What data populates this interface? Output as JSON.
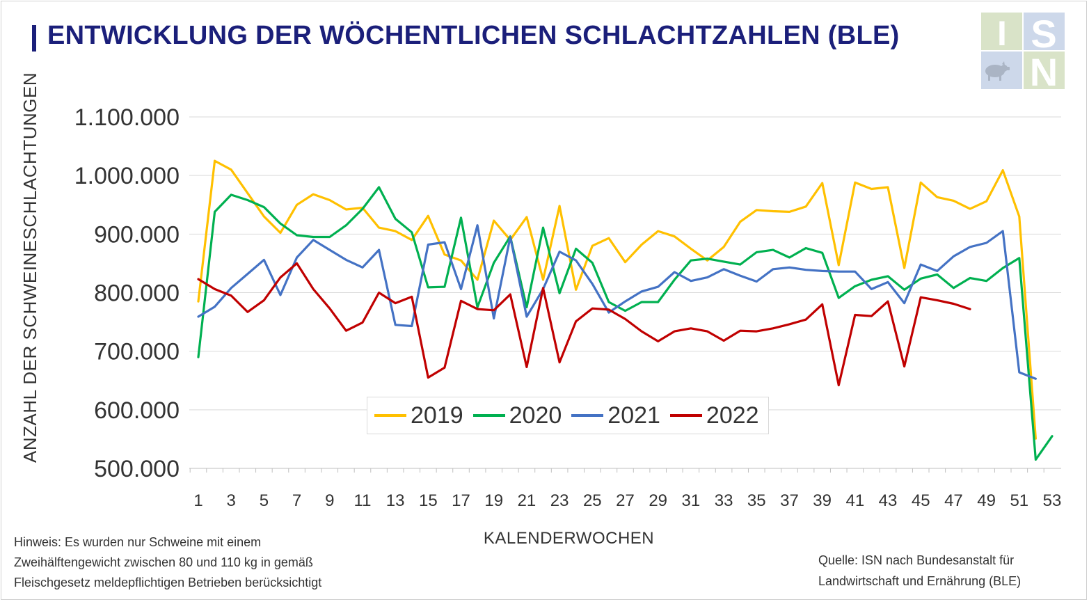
{
  "header": {
    "title": "ENTWICKLUNG DER WÖCHENTLICHEN SCHLACHTZAHLEN (BLE)"
  },
  "logo": {
    "text_letters": [
      "I",
      "S",
      "N"
    ],
    "icon": "pig-icon"
  },
  "footer": {
    "note_lines": [
      "Hinweis: Es wurden nur Schweine mit einem",
      "Zweihälftengewicht zwischen 80 und 110 kg  in gemäß",
      "Fleischgesetz meldepflichtigen Betrieben berücksichtigt"
    ],
    "source_lines": [
      "Quelle: ISN nach Bundesanstalt für",
      "Landwirtschaft und Ernährung (BLE)"
    ]
  },
  "chart_data": {
    "type": "line",
    "title": "ENTWICKLUNG DER WÖCHENTLICHEN SCHLACHTZAHLEN (BLE)",
    "xlabel": "KALENDERWOCHEN",
    "ylabel": "ANZAHL DER SCHWEINESCHLACHTUNGEN",
    "xlim": [
      1,
      53
    ],
    "ylim": [
      500000,
      1100000
    ],
    "x_ticks": [
      1,
      3,
      5,
      7,
      9,
      11,
      13,
      15,
      17,
      19,
      21,
      23,
      25,
      27,
      29,
      31,
      33,
      35,
      37,
      39,
      41,
      43,
      45,
      47,
      49,
      51,
      53
    ],
    "y_ticks": [
      500000,
      600000,
      700000,
      800000,
      900000,
      1000000,
      1100000
    ],
    "y_tick_labels": [
      "500.000",
      "600.000",
      "700.000",
      "800.000",
      "900.000",
      "1.000.000",
      "1.100.000"
    ],
    "grid": "horizontal",
    "legend_position": "bottom-center",
    "series": [
      {
        "name": "2019",
        "color": "#FFC000",
        "x_start": 1,
        "values": [
          785000,
          1025000,
          1010000,
          970000,
          930000,
          902000,
          950000,
          968000,
          958000,
          942000,
          945000,
          911000,
          905000,
          890000,
          931000,
          865000,
          855000,
          822000,
          923000,
          890000,
          929000,
          822000,
          948000,
          805000,
          880000,
          893000,
          852000,
          882000,
          905000,
          896000,
          875000,
          855000,
          878000,
          921000,
          941000,
          939000,
          938000,
          947000,
          987000,
          847000,
          988000,
          977000,
          980000,
          842000,
          988000,
          963000,
          957000,
          943000,
          956000,
          1009000,
          930000,
          551000
        ]
      },
      {
        "name": "2020",
        "color": "#00B050",
        "x_start": 1,
        "values": [
          690000,
          938000,
          967000,
          958000,
          946000,
          918000,
          898000,
          895000,
          895000,
          915000,
          943000,
          980000,
          926000,
          903000,
          809000,
          810000,
          928000,
          775000,
          851000,
          896000,
          775000,
          911000,
          799000,
          875000,
          851000,
          784000,
          769000,
          784000,
          784000,
          822000,
          855000,
          858000,
          853000,
          848000,
          869000,
          873000,
          860000,
          876000,
          868000,
          791000,
          811000,
          822000,
          828000,
          805000,
          824000,
          831000,
          808000,
          825000,
          820000,
          842000,
          859000,
          515000,
          555000
        ]
      },
      {
        "name": "2021",
        "color": "#4472C4",
        "x_start": 1,
        "values": [
          759000,
          776000,
          808000,
          832000,
          856000,
          796000,
          860000,
          890000,
          873000,
          856000,
          843000,
          873000,
          745000,
          743000,
          882000,
          886000,
          806000,
          915000,
          756000,
          895000,
          759000,
          806000,
          870000,
          855000,
          815000,
          766000,
          785000,
          802000,
          810000,
          835000,
          820000,
          826000,
          840000,
          829000,
          819000,
          840000,
          843000,
          839000,
          837000,
          836000,
          836000,
          806000,
          818000,
          782000,
          848000,
          837000,
          862000,
          878000,
          885000,
          905000,
          664000,
          653000
        ]
      },
      {
        "name": "2022",
        "color": "#C00000",
        "x_start": 1,
        "values": [
          823000,
          806000,
          795000,
          767000,
          787000,
          826000,
          850000,
          806000,
          773000,
          735000,
          749000,
          800000,
          782000,
          793000,
          655000,
          672000,
          786000,
          772000,
          770000,
          797000,
          673000,
          808000,
          681000,
          751000,
          773000,
          771000,
          755000,
          734000,
          717000,
          734000,
          739000,
          734000,
          718000,
          735000,
          734000,
          739000,
          746000,
          754000,
          780000,
          642000,
          762000,
          760000,
          785000,
          674000,
          792000,
          787000,
          781000,
          772000
        ]
      }
    ]
  }
}
